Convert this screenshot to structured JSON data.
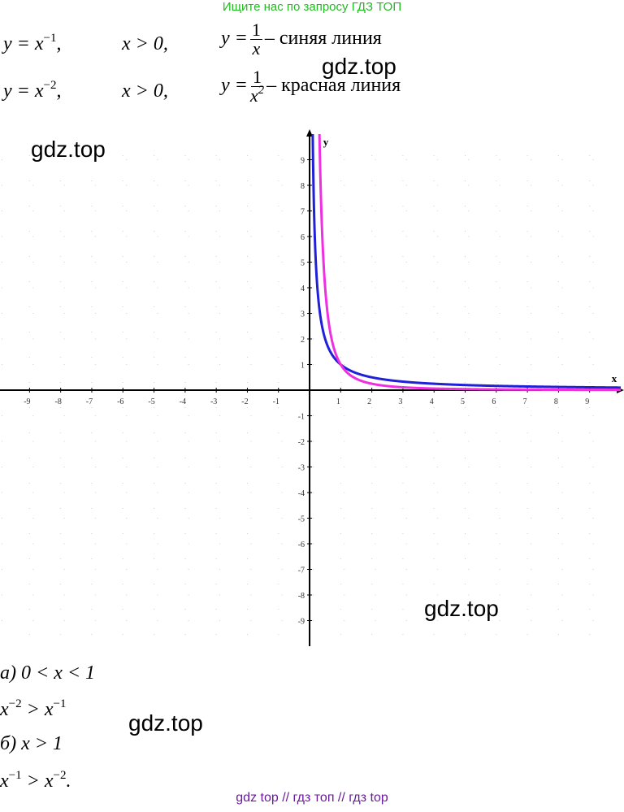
{
  "header": "Ищите нас по запросу ГДЗ ТОП",
  "formulas": [
    {
      "equation": [
        "y = x",
        "−1",
        ","
      ],
      "condition": "x > 0,",
      "lhs": "y =",
      "numerator": "1",
      "denominator": [
        "x"
      ],
      "description": "– синяя линия"
    },
    {
      "equation": [
        "y = x",
        "−2",
        ","
      ],
      "condition": "x > 0,",
      "lhs": "y =",
      "numerator": "1",
      "denominator": [
        "x",
        "2"
      ],
      "description": "– красная линия"
    }
  ],
  "graph": {
    "xlim": [
      -9.95,
      10
    ],
    "ylim": [
      -10,
      10
    ],
    "xticks": [
      -9,
      -8,
      -7,
      -6,
      -5,
      -4,
      -3,
      -2,
      -1,
      1,
      2,
      3,
      4,
      5,
      6,
      7,
      8,
      9
    ],
    "yticks": [
      -9,
      -8,
      -7,
      -6,
      -5,
      -4,
      -3,
      -2,
      -1,
      1,
      2,
      3,
      4,
      5,
      6,
      7,
      8,
      9
    ],
    "x_label": "x",
    "y_label": "y",
    "grid": true,
    "curves": [
      {
        "power": -1,
        "color": "#2020d8"
      },
      {
        "power": -2,
        "color": "#ee30e0"
      }
    ]
  },
  "answers": [
    [
      "а) 0 < x < 1"
    ],
    [
      "x",
      "−2",
      " > x",
      "−1"
    ],
    [
      "б) x > 1"
    ],
    [
      "x",
      "−1",
      " > x",
      "−2",
      "."
    ]
  ],
  "watermarks": [
    "gdz.top",
    "gdz.top",
    "gdz.top",
    "gdz.top"
  ],
  "footer": "gdz top  //  гдз топ  //  гдз top"
}
